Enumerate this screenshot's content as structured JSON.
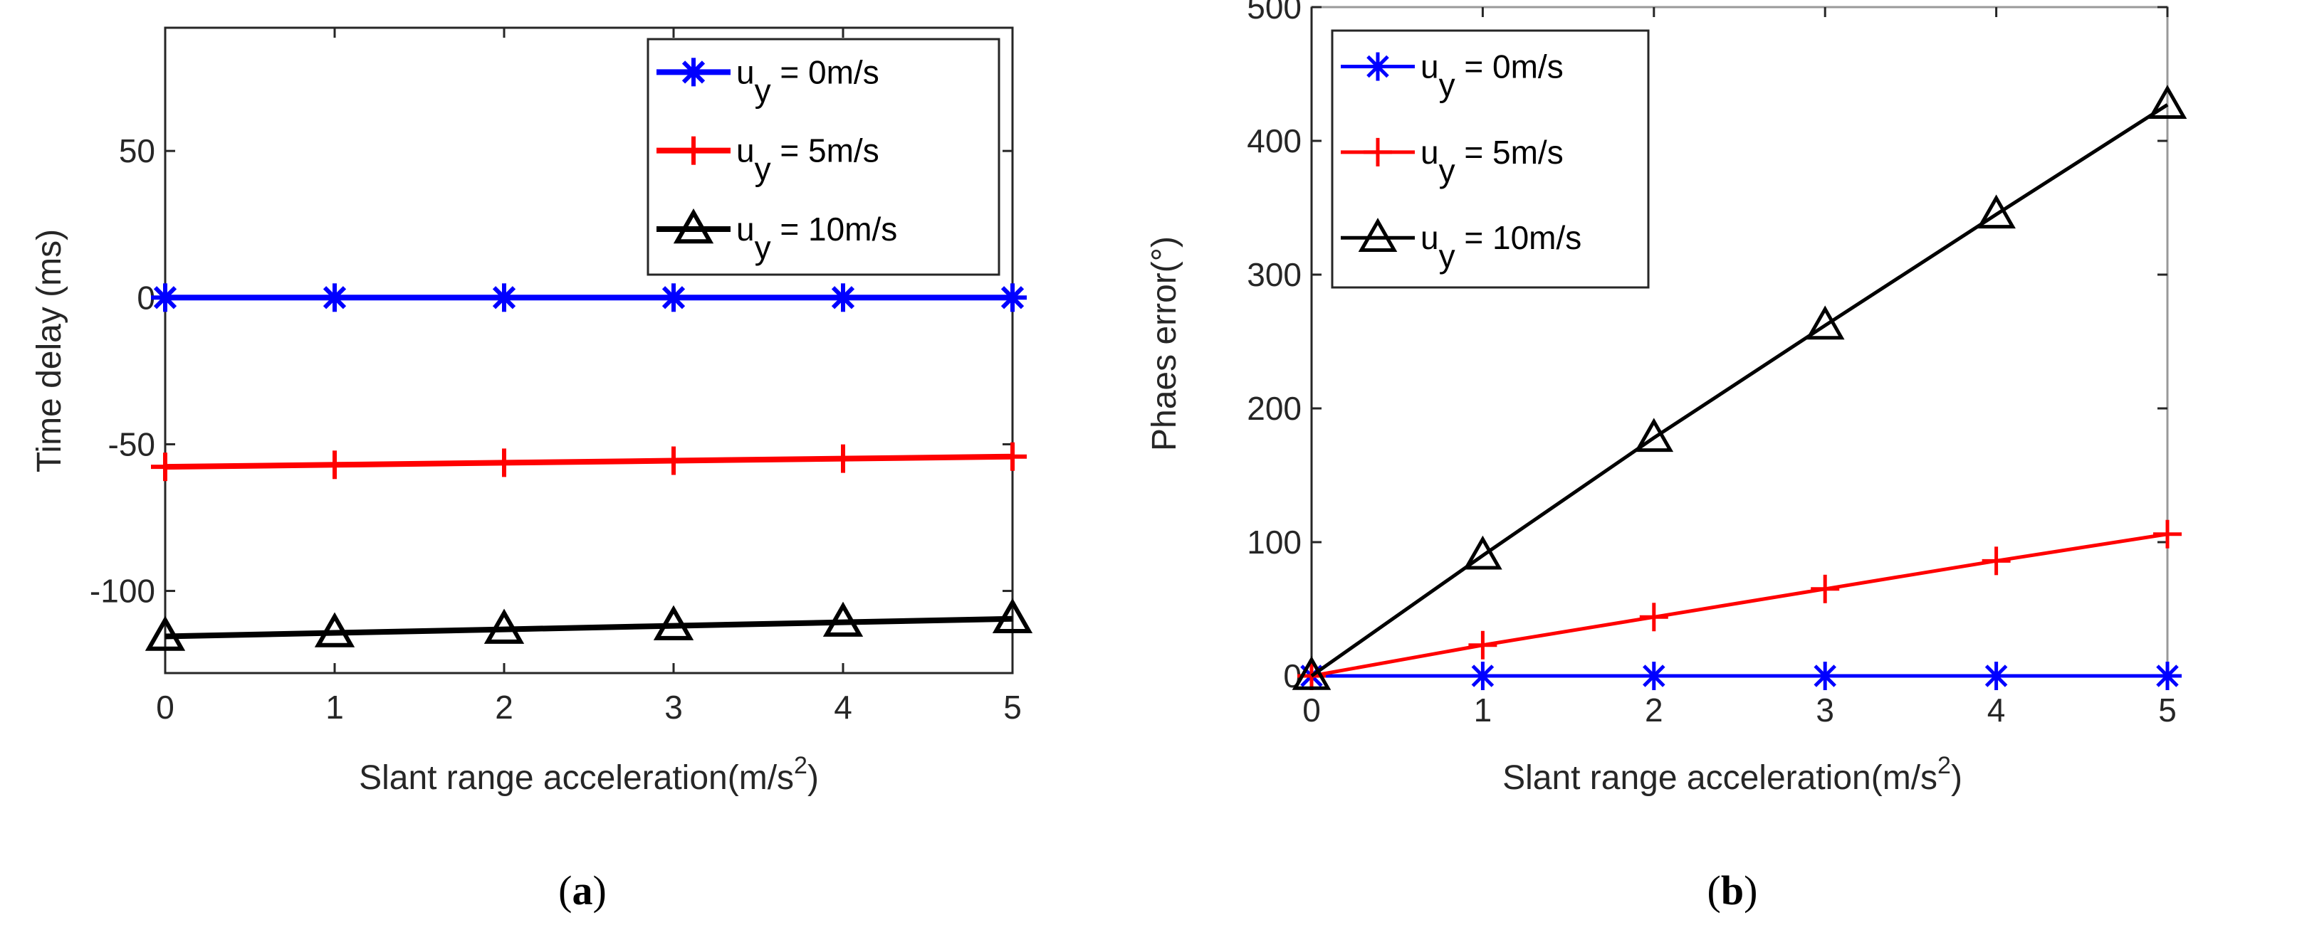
{
  "chart_data": [
    {
      "type": "line",
      "caption_open": "(",
      "caption_letter": "a",
      "caption_close": ")",
      "xlabel": "Slant range acceleration(m/s",
      "xlabel_sup": "2",
      "xlabel_end": ")",
      "ylabel": "Time delay (ms)",
      "x": [
        0,
        1,
        2,
        3,
        4,
        5
      ],
      "xlim": [
        0,
        5
      ],
      "ylim": [
        -128,
        92
      ],
      "xticks": [
        "0",
        "1",
        "2",
        "3",
        "4",
        "5"
      ],
      "yticks": [
        50,
        0,
        -50,
        -100
      ],
      "ytick_labels": [
        "50",
        "0",
        "-50",
        "-100"
      ],
      "legend_position": "top-right",
      "series": [
        {
          "name": "u",
          "sub": "y",
          "rest": " = 0m/s",
          "color": "#0000ff",
          "marker": "asterisk",
          "values": [
            0,
            0,
            0,
            0,
            0,
            0
          ]
        },
        {
          "name": "u",
          "sub": "y",
          "rest": " = 5m/s",
          "color": "#ff0000",
          "marker": "plus",
          "values": [
            -57.7,
            -57.0,
            -56.3,
            -55.6,
            -54.9,
            -54.2
          ]
        },
        {
          "name": "u",
          "sub": "y",
          "rest": " = 10m/s",
          "color": "#000000",
          "marker": "triangle",
          "values": [
            -115.5,
            -114.3,
            -113.1,
            -111.9,
            -110.7,
            -109.5
          ]
        }
      ]
    },
    {
      "type": "line",
      "caption_open": "(",
      "caption_letter": "b",
      "caption_close": ")",
      "xlabel": "Slant range acceleration(m/s",
      "xlabel_sup": "2",
      "xlabel_end": ")",
      "ylabel": "Phaes error(°)",
      "x": [
        0,
        1,
        2,
        3,
        4,
        5
      ],
      "xlim": [
        0,
        5
      ],
      "ylim": [
        0,
        500
      ],
      "xticks": [
        "0",
        "1",
        "2",
        "3",
        "4",
        "5"
      ],
      "yticks": [
        0,
        100,
        200,
        300,
        400,
        500
      ],
      "ytick_labels": [
        "0",
        "100",
        "200",
        "300",
        "400",
        "500"
      ],
      "legend_position": "top-left",
      "series": [
        {
          "name": "u",
          "sub": "y",
          "rest": " = 0m/s",
          "color": "#0000ff",
          "marker": "asterisk",
          "values": [
            0,
            0,
            0,
            0,
            0,
            0
          ]
        },
        {
          "name": "u",
          "sub": "y",
          "rest": " = 5m/s",
          "color": "#ff0000",
          "marker": "plus",
          "values": [
            0,
            23,
            44,
            65,
            86,
            106
          ]
        },
        {
          "name": "u",
          "sub": "y",
          "rest": " = 10m/s",
          "color": "#000000",
          "marker": "triangle",
          "values": [
            0,
            90,
            178,
            262,
            345,
            427
          ]
        }
      ]
    }
  ]
}
